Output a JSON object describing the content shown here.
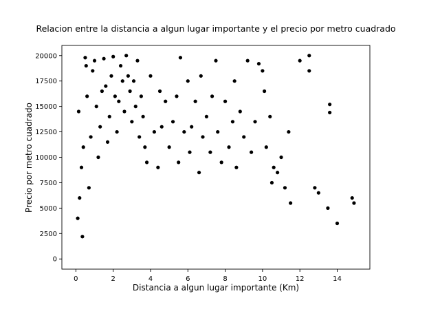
{
  "chart_data": {
    "type": "scatter",
    "title": "Relacion entre la distancia a algun lugar importante y el precio por metro cuadrado",
    "xlabel": "Distancia a algun lugar importante (Km)",
    "ylabel": "Precio por metro cuadrado",
    "xlim": [
      -0.75,
      15.75
    ],
    "ylim": [
      -1000,
      21000
    ],
    "xticks": [
      0,
      2,
      4,
      6,
      8,
      10,
      12,
      14
    ],
    "yticks": [
      0,
      2500,
      5000,
      7500,
      10000,
      12500,
      15000,
      17500,
      20000
    ],
    "grid": false,
    "legend": "none",
    "marker_color": "#000000",
    "series": [
      {
        "values": [
          [
            0.1,
            4000
          ],
          [
            0.15,
            14500
          ],
          [
            0.2,
            6000
          ],
          [
            0.3,
            9000
          ],
          [
            0.35,
            2200
          ],
          [
            0.4,
            11000
          ],
          [
            0.5,
            19800
          ],
          [
            0.55,
            19000
          ],
          [
            0.6,
            16000
          ],
          [
            0.7,
            7000
          ],
          [
            0.8,
            12000
          ],
          [
            0.9,
            18500
          ],
          [
            1.0,
            19500
          ],
          [
            1.1,
            15000
          ],
          [
            1.2,
            10000
          ],
          [
            1.3,
            13000
          ],
          [
            1.4,
            16500
          ],
          [
            1.5,
            19700
          ],
          [
            1.6,
            17000
          ],
          [
            1.7,
            11500
          ],
          [
            1.8,
            14000
          ],
          [
            1.9,
            18000
          ],
          [
            2.0,
            19900
          ],
          [
            2.1,
            16000
          ],
          [
            2.2,
            12500
          ],
          [
            2.3,
            15500
          ],
          [
            2.4,
            19000
          ],
          [
            2.5,
            17500
          ],
          [
            2.6,
            14500
          ],
          [
            2.7,
            20000
          ],
          [
            2.8,
            18000
          ],
          [
            2.9,
            16500
          ],
          [
            3.0,
            13500
          ],
          [
            3.1,
            17500
          ],
          [
            3.2,
            15000
          ],
          [
            3.3,
            19500
          ],
          [
            3.4,
            12000
          ],
          [
            3.5,
            16000
          ],
          [
            3.6,
            14000
          ],
          [
            3.7,
            11000
          ],
          [
            3.8,
            9500
          ],
          [
            4.0,
            18000
          ],
          [
            4.2,
            12500
          ],
          [
            4.4,
            9000
          ],
          [
            4.5,
            16500
          ],
          [
            4.6,
            13000
          ],
          [
            4.8,
            15500
          ],
          [
            5.0,
            11000
          ],
          [
            5.2,
            13500
          ],
          [
            5.4,
            16000
          ],
          [
            5.5,
            9500
          ],
          [
            5.6,
            19800
          ],
          [
            5.8,
            12500
          ],
          [
            6.0,
            17500
          ],
          [
            6.1,
            10500
          ],
          [
            6.2,
            13000
          ],
          [
            6.4,
            15500
          ],
          [
            6.6,
            8500
          ],
          [
            6.7,
            18000
          ],
          [
            6.8,
            12000
          ],
          [
            7.0,
            14000
          ],
          [
            7.2,
            10500
          ],
          [
            7.3,
            16000
          ],
          [
            7.5,
            19500
          ],
          [
            7.6,
            12500
          ],
          [
            7.8,
            9500
          ],
          [
            8.0,
            15500
          ],
          [
            8.2,
            11000
          ],
          [
            8.4,
            13500
          ],
          [
            8.5,
            17500
          ],
          [
            8.6,
            9000
          ],
          [
            8.8,
            14500
          ],
          [
            9.0,
            12000
          ],
          [
            9.2,
            19500
          ],
          [
            9.4,
            10500
          ],
          [
            9.6,
            13500
          ],
          [
            9.8,
            19200
          ],
          [
            10.0,
            18500
          ],
          [
            10.1,
            16500
          ],
          [
            10.2,
            11000
          ],
          [
            10.4,
            14000
          ],
          [
            10.5,
            7500
          ],
          [
            10.6,
            9000
          ],
          [
            10.8,
            8500
          ],
          [
            11.0,
            10000
          ],
          [
            11.2,
            7000
          ],
          [
            11.4,
            12500
          ],
          [
            11.5,
            5500
          ],
          [
            12.0,
            19500
          ],
          [
            12.5,
            20000
          ],
          [
            12.5,
            18500
          ],
          [
            12.8,
            7000
          ],
          [
            13.0,
            6500
          ],
          [
            13.6,
            15200
          ],
          [
            13.6,
            14400
          ],
          [
            13.5,
            5000
          ],
          [
            14.0,
            3500
          ],
          [
            14.8,
            6000
          ],
          [
            14.9,
            5500
          ]
        ]
      }
    ]
  }
}
